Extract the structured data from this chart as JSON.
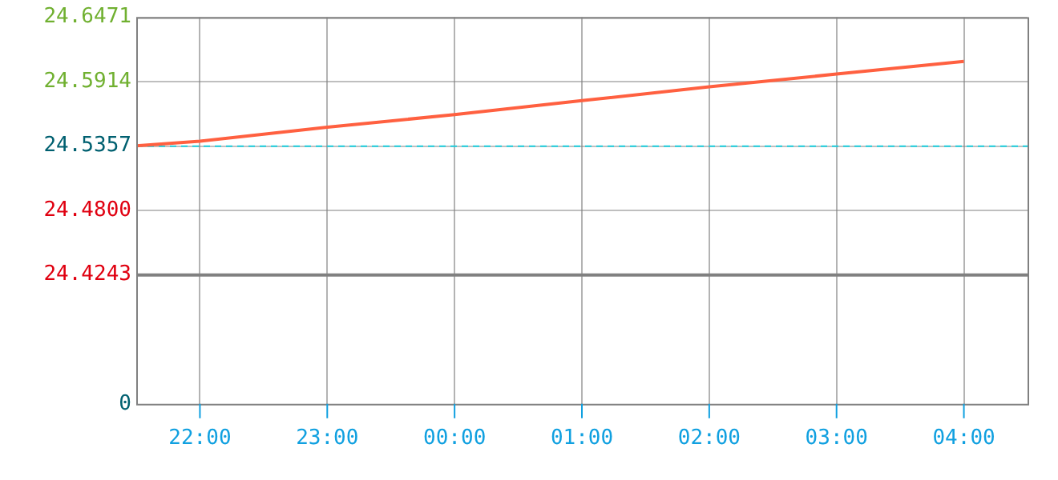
{
  "chart_data": {
    "type": "line",
    "x": [
      "--01-01T21:30",
      "--01-01T22:00",
      "--01-01T23:00",
      "--01-02T00:00",
      "--01-02T01:00",
      "--01-02T02:00",
      "--01-02T03:00",
      "--01-02T04:00"
    ],
    "series": [
      {
        "color": "#ff6040",
        "values": [
          24.536,
          24.54,
          24.552,
          24.563,
          24.575,
          24.587,
          24.598,
          24.609
        ]
      }
    ],
    "xlim": [
      "--01-01T21:30",
      "--01-02T04:30"
    ],
    "xticks": [
      {
        "value": "--01-01T22:00",
        "label": "22:00"
      },
      {
        "value": "--01-01T23:00",
        "label": "23:00"
      },
      {
        "value": "--01-02T00:00",
        "label": "00:00"
      },
      {
        "value": "--01-02T01:00",
        "label": "01:00"
      },
      {
        "value": "--01-02T02:00",
        "label": "02:00"
      },
      {
        "value": "--01-02T03:00",
        "label": "03:00"
      },
      {
        "value": "--01-02T04:00",
        "label": "04:00"
      }
    ],
    "ylim": [
      24.3129,
      24.6471
    ],
    "yticks": [
      24.4243,
      {
        "value": 24.48,
        "label": "24.4800"
      },
      24.5357,
      24.5914,
      24.6471
    ],
    "annotations": [
      "0"
    ],
    "ref_lines": [
      {
        "axis": "y",
        "value": 24.5357,
        "color": "#20d0e0",
        "line_style": "dashed"
      },
      {
        "axis": "y",
        "value": 24.4243,
        "color": "#808080",
        "line_style": "solid"
      }
    ],
    "grid": true,
    "legend": false,
    "marker": "none",
    "line_style": "solid"
  }
}
